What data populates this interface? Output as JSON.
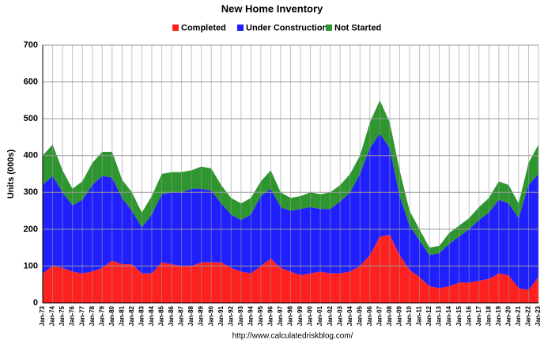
{
  "chart_data": {
    "type": "stacked_area",
    "title": "New Home Inventory",
    "y_label": "Units (000s)",
    "source": "http://www.calculatedriskblog.com/",
    "categories": [
      "Jan-73",
      "Jan-74",
      "Jan-75",
      "Jan-76",
      "Jan-77",
      "Jan-78",
      "Jan-79",
      "Jan-80",
      "Jan-81",
      "Jan-82",
      "Jan-83",
      "Jan-84",
      "Jan-85",
      "Jan-86",
      "Jan-87",
      "Jan-88",
      "Jan-89",
      "Jan-90",
      "Jan-91",
      "Jan-92",
      "Jan-93",
      "Jan-94",
      "Jan-95",
      "Jan-96",
      "Jan-97",
      "Jan-98",
      "Jan-99",
      "Jan-00",
      "Jan-01",
      "Jan-02",
      "Jan-03",
      "Jan-04",
      "Jan-05",
      "Jan-06",
      "Jan-07",
      "Jan-08",
      "Jan-09",
      "Jan-10",
      "Jan-11",
      "Jan-12",
      "Jan-13",
      "Jan-14",
      "Jan-15",
      "Jan-16",
      "Jan-17",
      "Jan-18",
      "Jan-19",
      "Jan-20",
      "Jan-21",
      "Jan-22",
      "Jan-23"
    ],
    "series": [
      {
        "name": "Completed",
        "color": "#ff2020",
        "values": [
          80,
          100,
          95,
          85,
          80,
          85,
          95,
          115,
          105,
          105,
          80,
          80,
          110,
          105,
          100,
          100,
          110,
          110,
          110,
          95,
          85,
          80,
          100,
          120,
          95,
          85,
          75,
          80,
          85,
          80,
          80,
          85,
          100,
          130,
          180,
          185,
          130,
          90,
          70,
          45,
          40,
          45,
          55,
          55,
          60,
          65,
          80,
          75,
          40,
          35,
          70
        ]
      },
      {
        "name": "Under Construction",
        "color": "#2020ff",
        "values": [
          240,
          245,
          205,
          180,
          200,
          235,
          250,
          225,
          180,
          145,
          125,
          160,
          185,
          195,
          200,
          210,
          200,
          195,
          160,
          145,
          140,
          160,
          190,
          190,
          165,
          165,
          180,
          180,
          170,
          175,
          195,
          215,
          250,
          290,
          280,
          235,
          160,
          120,
          100,
          85,
          95,
          115,
          125,
          145,
          165,
          180,
          200,
          195,
          190,
          285,
          280
        ]
      },
      {
        "name": "Not Started",
        "color": "#2e962e",
        "values": [
          80,
          85,
          60,
          45,
          50,
          60,
          65,
          70,
          50,
          50,
          40,
          50,
          55,
          55,
          55,
          50,
          60,
          60,
          50,
          45,
          45,
          45,
          40,
          50,
          40,
          35,
          35,
          40,
          40,
          45,
          45,
          50,
          50,
          70,
          90,
          70,
          70,
          40,
          30,
          20,
          20,
          30,
          30,
          30,
          35,
          40,
          50,
          50,
          40,
          60,
          80
        ]
      }
    ],
    "ylim": [
      0,
      700
    ],
    "yticks": [
      0,
      100,
      200,
      300,
      400,
      500,
      600,
      700
    ],
    "grid": true,
    "legend": "top"
  }
}
